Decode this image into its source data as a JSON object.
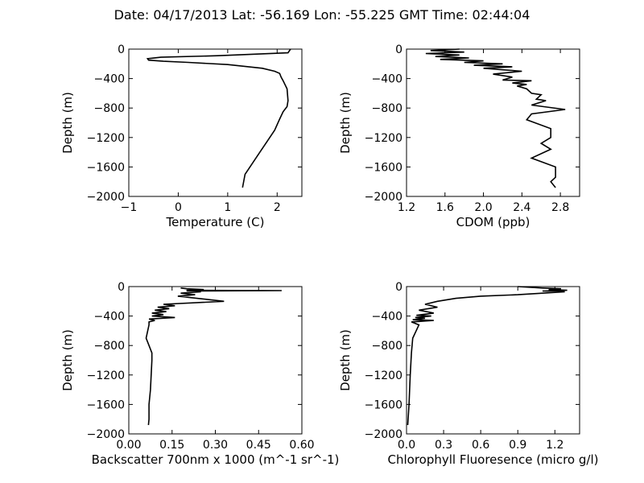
{
  "figure": {
    "title": "Date: 04/17/2013  Lat:  -56.169 Lon:  -55.225  GMT Time: 02:44:04"
  },
  "chart_data": [
    {
      "type": "line",
      "xlabel": "Temperature (C)",
      "ylabel": "Depth (m)",
      "xlim": [
        -1,
        2.5
      ],
      "ylim": [
        -2000,
        0
      ],
      "xticks": [
        -1,
        0,
        1,
        2
      ],
      "xtick_labels": [
        "−1",
        "0",
        "1",
        "2"
      ],
      "yticks": [
        0,
        -400,
        -800,
        -1200,
        -1600,
        -2000
      ],
      "ytick_labels": [
        "0",
        "−400",
        "−800",
        "−1200",
        "−1600",
        "−2000"
      ],
      "x": [
        2.27,
        2.22,
        0.8,
        -0.35,
        -0.62,
        -0.6,
        -0.3,
        0.2,
        1.0,
        1.7,
        1.95,
        2.05,
        2.08,
        2.12,
        2.2,
        2.22,
        2.2,
        2.12,
        2.05,
        1.95,
        1.8,
        1.65,
        1.55,
        1.45,
        1.35,
        1.3
      ],
      "y": [
        0,
        -50,
        -90,
        -110,
        -130,
        -150,
        -165,
        -180,
        -210,
        -260,
        -300,
        -330,
        -380,
        -430,
        -540,
        -700,
        -780,
        -850,
        -950,
        -1100,
        -1250,
        -1400,
        -1500,
        -1600,
        -1700,
        -1880
      ]
    },
    {
      "type": "line",
      "xlabel": "CDOM (ppb)",
      "ylabel": "Depth (m)",
      "xlim": [
        1.2,
        3.0
      ],
      "ylim": [
        -2000,
        0
      ],
      "xticks": [
        1.2,
        1.6,
        2.0,
        2.4,
        2.8
      ],
      "xtick_labels": [
        "1.2",
        "1.6",
        "2.0",
        "2.4",
        "2.8"
      ],
      "yticks": [
        0,
        -400,
        -800,
        -1200,
        -1600,
        -2000
      ],
      "ytick_labels": [
        "0",
        "−400",
        "−800",
        "−1200",
        "−1600",
        "−2000"
      ],
      "x": [
        1.75,
        1.45,
        1.8,
        1.4,
        1.75,
        1.5,
        1.85,
        1.55,
        2.0,
        1.8,
        2.2,
        1.9,
        2.3,
        2.0,
        2.4,
        2.1,
        2.3,
        2.2,
        2.5,
        2.3,
        2.45,
        2.35,
        2.45,
        2.5,
        2.6,
        2.55,
        2.65,
        2.5,
        2.85,
        2.5,
        2.45,
        2.7,
        2.7,
        2.6,
        2.7,
        2.5,
        2.75,
        2.75,
        2.7,
        2.75
      ],
      "y": [
        0,
        -20,
        -40,
        -60,
        -80,
        -100,
        -120,
        -140,
        -160,
        -180,
        -200,
        -220,
        -240,
        -260,
        -300,
        -340,
        -380,
        -420,
        -430,
        -460,
        -480,
        -500,
        -540,
        -600,
        -620,
        -680,
        -700,
        -760,
        -820,
        -880,
        -960,
        -1080,
        -1200,
        -1280,
        -1360,
        -1480,
        -1600,
        -1740,
        -1800,
        -1880
      ]
    },
    {
      "type": "line",
      "xlabel": "Backscatter 700nm x 1000 (m^-1 sr^-1)",
      "ylabel": "Depth (m)",
      "xlim": [
        0,
        0.6
      ],
      "ylim": [
        -2000,
        0
      ],
      "xticks": [
        0,
        0.15,
        0.3,
        0.45,
        0.6
      ],
      "xtick_labels": [
        "0.00",
        "0.15",
        "0.30",
        "0.45",
        "0.60"
      ],
      "yticks": [
        0,
        -400,
        -800,
        -1200,
        -1600,
        -2000
      ],
      "ytick_labels": [
        "0",
        "−400",
        "−800",
        "−1200",
        "−1600",
        "−2000"
      ],
      "x": [
        0.18,
        0.2,
        0.26,
        0.2,
        0.53,
        0.2,
        0.25,
        0.18,
        0.23,
        0.17,
        0.33,
        0.12,
        0.16,
        0.1,
        0.14,
        0.09,
        0.13,
        0.08,
        0.12,
        0.08,
        0.16,
        0.07,
        0.09,
        0.07,
        0.07,
        0.06,
        0.07,
        0.08,
        0.08,
        0.075,
        0.07,
        0.07,
        0.068
      ],
      "y": [
        -20,
        -30,
        -40,
        -50,
        -55,
        -60,
        -70,
        -90,
        -110,
        -130,
        -200,
        -240,
        -260,
        -280,
        -300,
        -320,
        -340,
        -360,
        -380,
        -400,
        -420,
        -440,
        -460,
        -480,
        -520,
        -700,
        -800,
        -900,
        -1000,
        -1400,
        -1600,
        -1800,
        -1880
      ]
    },
    {
      "type": "line",
      "xlabel": "Chlorophyll Fluoresence (micro g/l)",
      "ylabel": "Depth (m)",
      "xlim": [
        0,
        1.4
      ],
      "ylim": [
        -2000,
        0
      ],
      "xticks": [
        0,
        0.3,
        0.6,
        0.9,
        1.2
      ],
      "xtick_labels": [
        "0.0",
        "0.3",
        "0.6",
        "0.9",
        "1.2"
      ],
      "yticks": [
        0,
        -400,
        -800,
        -1200,
        -1600,
        -2000
      ],
      "ytick_labels": [
        "0",
        "−400",
        "−800",
        "−1200",
        "−1600",
        "−2000"
      ],
      "x": [
        0.9,
        1.1,
        1.25,
        1.15,
        1.3,
        1.1,
        1.28,
        1.1,
        0.9,
        0.6,
        0.4,
        0.25,
        0.15,
        0.25,
        0.1,
        0.22,
        0.08,
        0.2,
        0.07,
        0.15,
        0.05,
        0.22,
        0.04,
        0.1,
        0.05,
        0.04,
        0.03,
        0.02,
        0.01
      ],
      "y": [
        0,
        -20,
        -30,
        -40,
        -50,
        -60,
        -70,
        -90,
        -110,
        -130,
        -160,
        -200,
        -240,
        -280,
        -320,
        -360,
        -390,
        -400,
        -420,
        -430,
        -450,
        -460,
        -480,
        -520,
        -700,
        -900,
        -1200,
        -1600,
        -1880
      ]
    }
  ]
}
